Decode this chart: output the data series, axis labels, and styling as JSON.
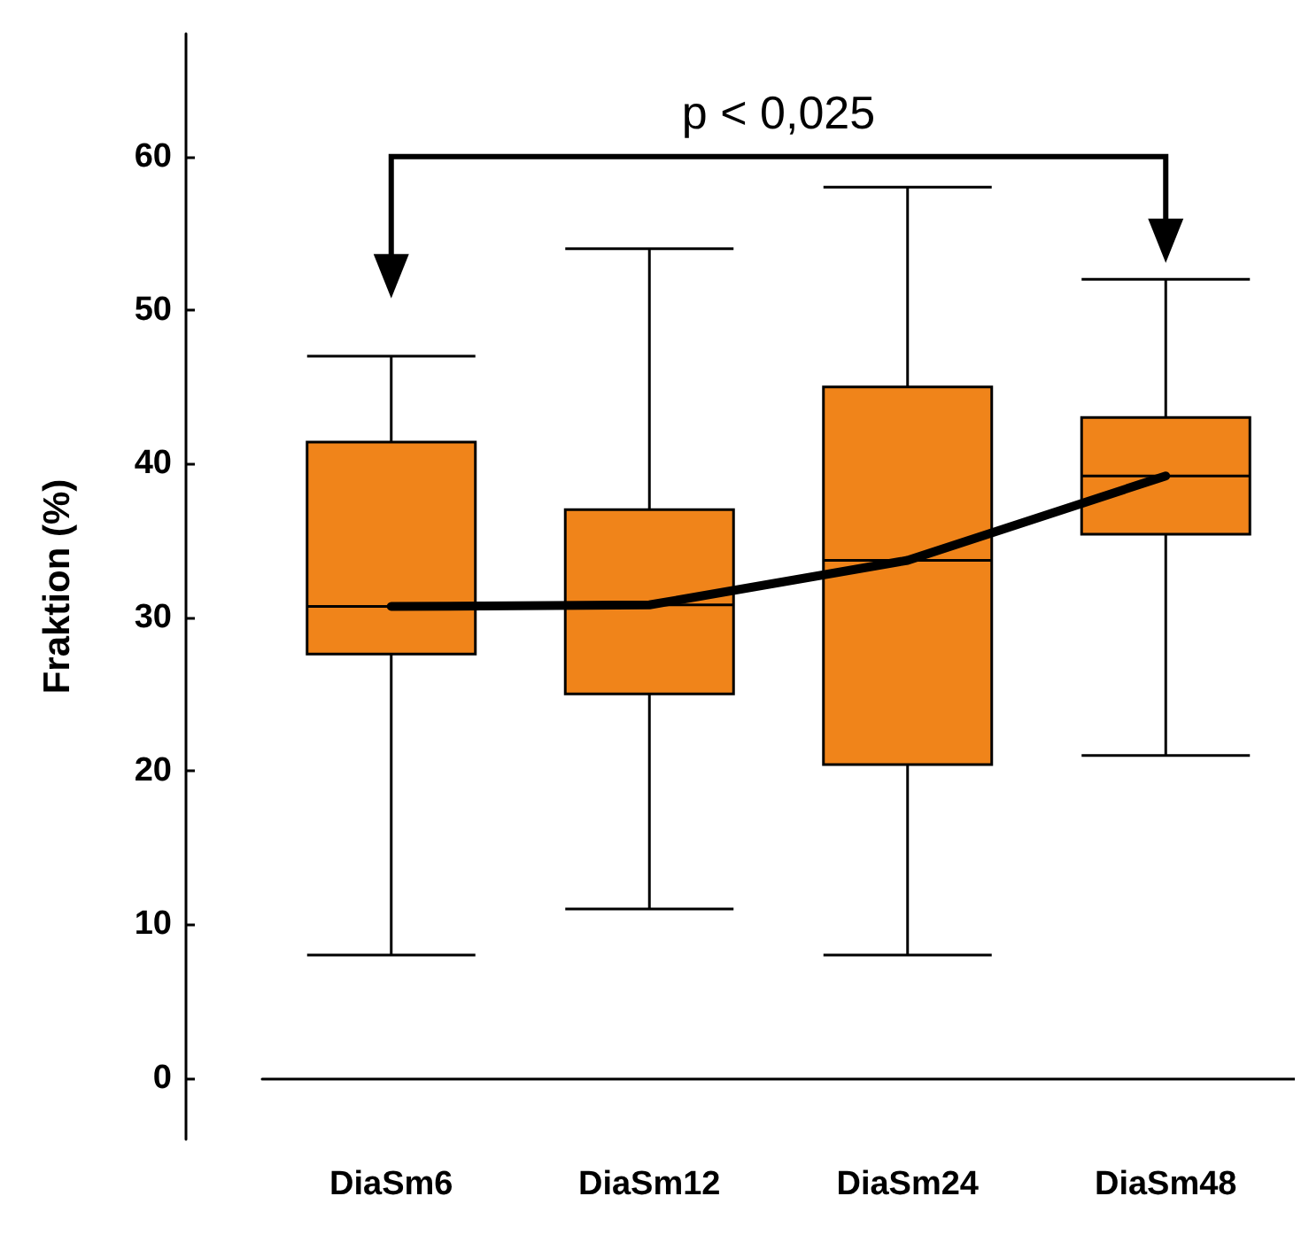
{
  "chart_data": {
    "type": "box",
    "ylabel": "Fraktion (%)",
    "categories": [
      "DiaSm6",
      "DiaSm12",
      "DiaSm24",
      "DiaSm48"
    ],
    "color": "#f0841a",
    "boxes": [
      {
        "low": 8,
        "q1": 27.6,
        "median": 30.7,
        "q3": 41.4,
        "high": 47
      },
      {
        "low": 11,
        "q1": 25,
        "median": 30.8,
        "q3": 37,
        "high": 54
      },
      {
        "low": 8,
        "q1": 20.4,
        "median": 33.7,
        "q3": 45,
        "high": 58
      },
      {
        "low": 21,
        "q1": 35.4,
        "median": 39.2,
        "q3": 43,
        "high": 52
      }
    ],
    "series": [
      {
        "type": "line",
        "color": "#000000",
        "values": [
          30.7,
          30.8,
          33.7,
          39.2
        ]
      }
    ],
    "marker": "none",
    "ylim": [
      -4,
      68
    ],
    "yticks": [
      0,
      10,
      20,
      30,
      40,
      50,
      60
    ],
    "annotations": [
      "p < 0,025"
    ]
  }
}
